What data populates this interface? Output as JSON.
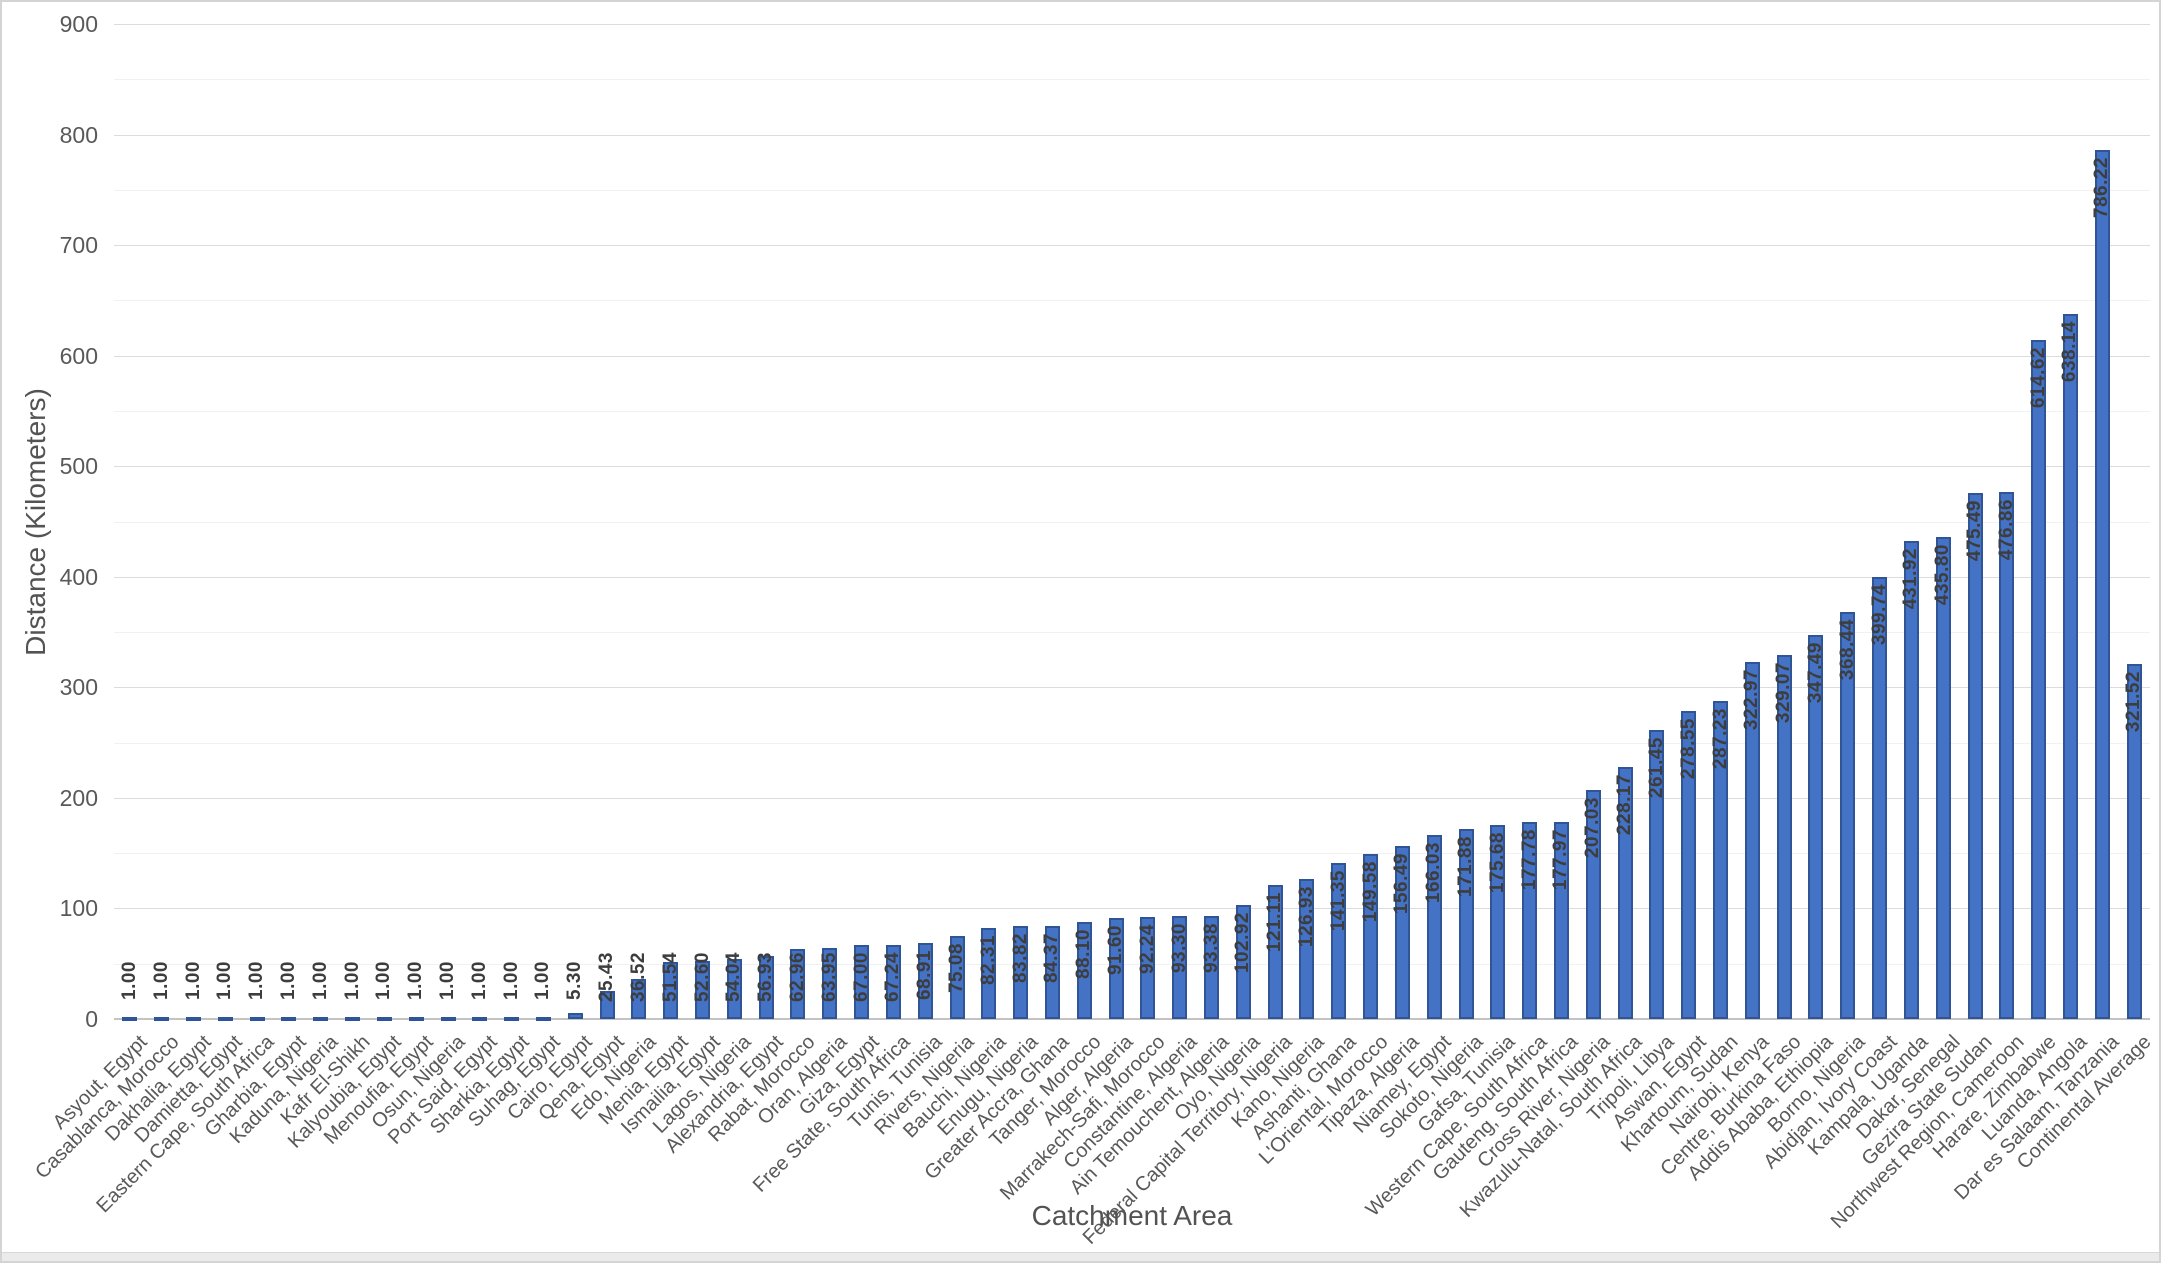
{
  "chart_data": {
    "type": "bar",
    "title": "",
    "xlabel": "Catchment Area",
    "ylabel": "Distance (Kilometers)",
    "ylim": [
      0,
      900
    ],
    "ytick_interval": 100,
    "minor_gridline_interval": 50,
    "grid": "on",
    "legend": "none",
    "bar_color": "#4472C4",
    "bar_border_color": "#2F5597",
    "y_ticks": [
      "0",
      "100",
      "200",
      "300",
      "400",
      "500",
      "600",
      "700",
      "800",
      "900"
    ],
    "categories": [
      "Asyout, Egypt",
      "Casablanca, Morocco",
      "Dakhalia, Egypt",
      "Damietta, Egypt",
      "Eastern Cape, South Africa",
      "Gharbia, Egypt",
      "Kaduna, Nigeria",
      "Kafr El-Shikh",
      "Kalyoubia, Egypt",
      "Menoufia, Egypt",
      "Osun, Nigeria",
      "Port Said, Egypt",
      "Sharkia, Egypt",
      "Suhag, Egypt",
      "Cairo, Egypt",
      "Qena, Egypt",
      "Edo, Nigeria",
      "Menia, Egypt",
      "Ismailia, Egypt",
      "Lagos, Nigeria",
      "Alexandria, Egypt",
      "Rabat, Morocco",
      "Oran, Algeria",
      "Giza, Egypt",
      "Free State, South Africa",
      "Tunis, Tunisia",
      "Rivers, Nigeria",
      "Bauchi, Nigeria",
      "Enugu, Nigeria",
      "Greater Accra, Ghana",
      "Tanger, Morocco",
      "Alger, Algeria",
      "Marrakech-Safi, Morocco",
      "Constantine, Algeria",
      "Ain Temouchent, Algeria",
      "Oyo, Nigeria",
      "Federal Capital Territory, Nigeria",
      "Kano, Nigeria",
      "Ashanti, Ghana",
      "L'Oriental, Morocco",
      "Tipaza, Algeria",
      "Niamey, Egypt",
      "Sokoto, Nigeria",
      "Gafsa, Tunisia",
      "Western Cape, South Africa",
      "Gauteng, South Africa",
      "Cross River, Nigeria",
      "Kwazulu-Natal, South Africa",
      "Tripoli, Libya",
      "Aswan, Egypt",
      "Khartoum, Sudan",
      "Nairobi, Kenya",
      "Centre, Burkina Faso",
      "Addis Ababa, Ethiopia",
      "Borno, Nigeria",
      "Abidjan, Ivory Coast",
      "Kampala, Uganda",
      "Dakar, Senegal",
      "Gezira State Sudan",
      "Northwest Region, Cameroon",
      "Harare, Zimbabwe",
      "Luanda, Angola",
      "Dar es Salaam, Tanzania",
      "Continental Average"
    ],
    "values": [
      1.0,
      1.0,
      1.0,
      1.0,
      1.0,
      1.0,
      1.0,
      1.0,
      1.0,
      1.0,
      1.0,
      1.0,
      1.0,
      1.0,
      5.3,
      25.43,
      36.52,
      51.54,
      52.6,
      54.04,
      56.93,
      62.96,
      63.95,
      67.0,
      67.24,
      68.91,
      75.08,
      82.31,
      83.82,
      84.37,
      88.1,
      91.6,
      92.24,
      93.3,
      93.38,
      102.92,
      121.11,
      126.93,
      141.35,
      149.58,
      156.49,
      166.03,
      171.88,
      175.68,
      177.78,
      177.97,
      207.03,
      228.17,
      261.45,
      278.55,
      287.23,
      322.97,
      329.07,
      347.49,
      368.44,
      399.74,
      431.92,
      435.8,
      475.49,
      476.86,
      614.62,
      638.14,
      786.22,
      321.52
    ],
    "value_labels": [
      "1.00",
      "1.00",
      "1.00",
      "1.00",
      "1.00",
      "1.00",
      "1.00",
      "1.00",
      "1.00",
      "1.00",
      "1.00",
      "1.00",
      "1.00",
      "1.00",
      "5.30",
      "25.43",
      "36.52",
      "51.54",
      "52.60",
      "54.04",
      "56.93",
      "62.96",
      "63.95",
      "67.00",
      "67.24",
      "68.91",
      "75.08",
      "82.31",
      "83.82",
      "84.37",
      "88.10",
      "91.60",
      "92.24",
      "93.30",
      "93.38",
      "102.92",
      "121.11",
      "126.93",
      "141.35",
      "149.58",
      "156.49",
      "166.03",
      "171.88",
      "175.68",
      "177.78",
      "177.97",
      "207.03",
      "228.17",
      "261.45",
      "278.55",
      "287.23",
      "322.97",
      "329.07",
      "347.49",
      "368.44",
      "399.74",
      "431.92",
      "435.80",
      "475.49",
      "476.86",
      "614.62",
      "638.14",
      "786.22",
      "321.52"
    ]
  },
  "axes": {
    "x_title": "Catchment Area",
    "y_title": "Distance (Kilometers)"
  }
}
